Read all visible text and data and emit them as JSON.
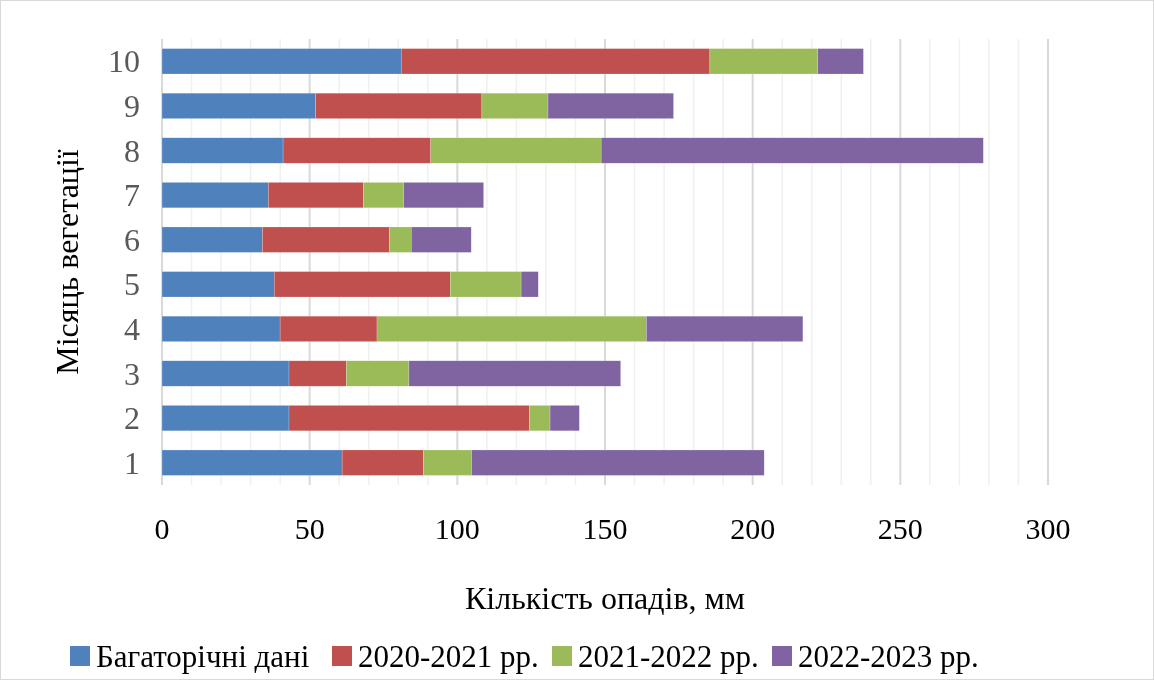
{
  "chart_data": {
    "type": "bar",
    "orientation": "horizontal",
    "stacked": true,
    "xlabel": "Кількість опадів, мм",
    "ylabel": "Місяць вегетації",
    "categories": [
      "10",
      "9",
      "8",
      "7",
      "6",
      "5",
      "4",
      "3",
      "2",
      "1"
    ],
    "series": [
      {
        "name": "Багаторічні дані",
        "color": "#4f81bd",
        "values": [
          81,
          52,
          41,
          36,
          34,
          38,
          40,
          43,
          43,
          61
        ]
      },
      {
        "name": "2020-2021 рр.",
        "color": "#c0504d",
        "values": [
          104.5,
          56.3,
          50,
          32.2,
          43,
          59.6,
          32.8,
          19.4,
          81.4,
          27.5
        ]
      },
      {
        "name": "2021-2022 рр.",
        "color": "#9bbb59",
        "values": [
          36.5,
          22.4,
          57.7,
          13.6,
          7.4,
          24,
          91.2,
          21.2,
          7,
          16.3
        ]
      },
      {
        "name": "2022-2023 рр.",
        "color": "#8064a2",
        "values": [
          15.5,
          42.5,
          129.4,
          27.1,
          20.3,
          5.8,
          53,
          71.7,
          9.9,
          99.1
        ]
      }
    ],
    "xlim": [
      0,
      300
    ],
    "xticks": [
      0,
      {
        "value": 10,
        "label": null
      },
      {
        "value": 20,
        "label": null
      },
      {
        "value": 30,
        "label": null
      },
      {
        "value": 40,
        "label": null
      },
      50,
      {
        "value": 60,
        "label": null
      },
      {
        "value": 70,
        "label": null
      },
      {
        "value": 80,
        "label": null
      },
      {
        "value": 90,
        "label": null
      },
      100,
      {
        "value": 110,
        "label": null
      },
      {
        "value": 120,
        "label": null
      },
      {
        "value": 130,
        "label": null
      },
      {
        "value": 140,
        "label": null
      },
      150,
      {
        "value": 160,
        "label": null
      },
      {
        "value": 170,
        "label": null
      },
      {
        "value": 180,
        "label": null
      },
      {
        "value": 190,
        "label": null
      },
      200,
      {
        "value": 210,
        "label": null
      },
      {
        "value": 220,
        "label": null
      },
      {
        "value": 230,
        "label": null
      },
      {
        "value": 240,
        "label": null
      },
      250,
      {
        "value": 260,
        "label": null
      },
      {
        "value": 270,
        "label": null
      },
      {
        "value": 280,
        "label": null
      },
      {
        "value": 290,
        "label": null
      },
      300
    ],
    "grid": "x",
    "legend": "bottom"
  }
}
